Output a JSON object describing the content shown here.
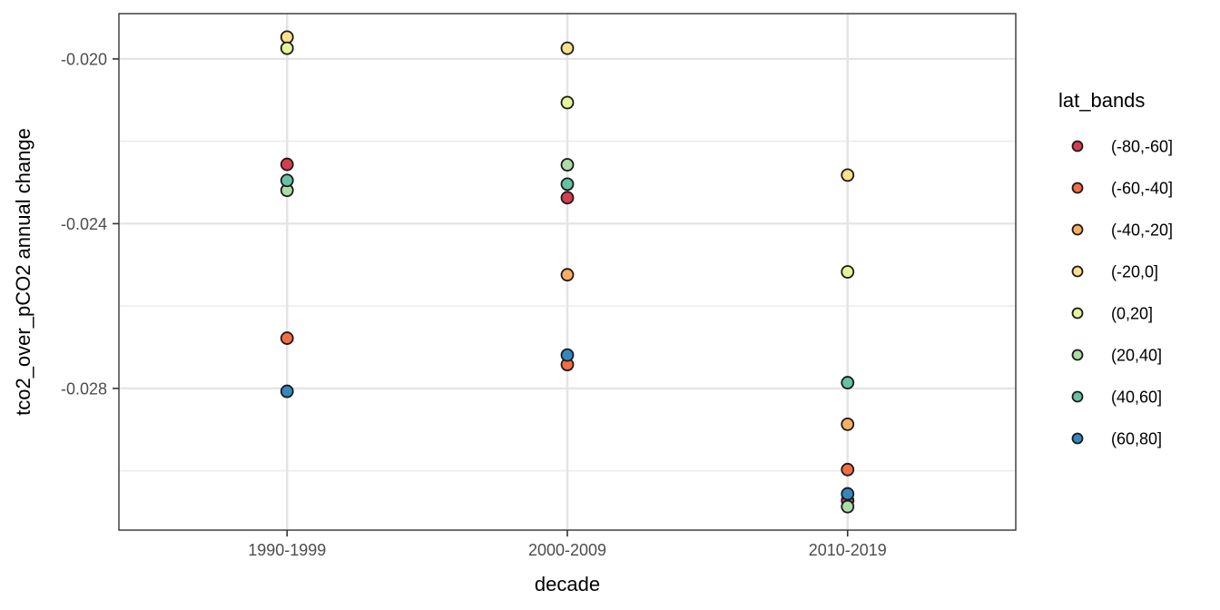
{
  "chart_data": {
    "type": "scatter",
    "title": "",
    "xlabel": "decade",
    "ylabel": "tco2_over_pCO2 annual change",
    "legend_title": "lat_bands",
    "legend_position": "right",
    "grid": true,
    "categories": [
      "1990-1999",
      "2000-2009",
      "2010-2019"
    ],
    "y_ticks": [
      {
        "label": "-0.020",
        "value": -0.02
      },
      {
        "label": "-0.024",
        "value": -0.024
      },
      {
        "label": "-0.028",
        "value": -0.028
      }
    ],
    "y_minor_ticks": [
      -0.022,
      -0.026,
      -0.03
    ],
    "ylim": [
      -0.03144,
      -0.0189
    ],
    "point_style": {
      "shape": "circle-filled-outlined",
      "outline": "#1a1a1a",
      "radius": 6.5
    },
    "series": [
      {
        "name": "(-80,-60]",
        "color": "#D53E4F",
        "values": [
          -0.02256,
          -0.02337,
          -0.03072
        ]
      },
      {
        "name": "(-60,-40]",
        "color": "#F46D43",
        "values": [
          -0.02678,
          -0.02742,
          -0.02997
        ]
      },
      {
        "name": "(-40,-20]",
        "color": "#FDAE61",
        "values": [
          null,
          -0.02524,
          -0.02887
        ]
      },
      {
        "name": "(-20,0]",
        "color": "#FEE08B",
        "values": [
          -0.01947,
          -0.01974,
          -0.02282
        ]
      },
      {
        "name": "(0,20]",
        "color": "#E6F598",
        "values": [
          -0.01974,
          -0.02106,
          -0.02517
        ]
      },
      {
        "name": "(20,40]",
        "color": "#ABDDA4",
        "values": [
          -0.02319,
          -0.02257,
          -0.03087
        ]
      },
      {
        "name": "(40,60]",
        "color": "#66C2A5",
        "values": [
          -0.02295,
          -0.02304,
          -0.02786
        ]
      },
      {
        "name": "(60,80]",
        "color": "#3288BD",
        "values": [
          -0.02807,
          -0.02719,
          -0.03056
        ]
      }
    ]
  }
}
